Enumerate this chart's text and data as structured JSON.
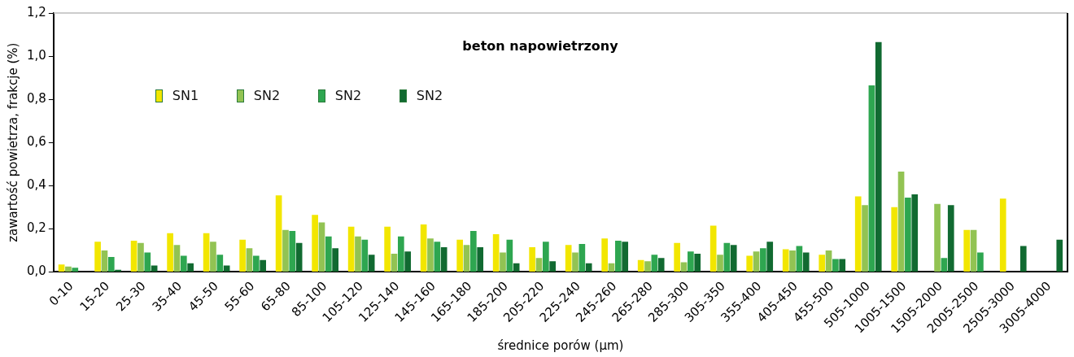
{
  "chart_data": {
    "type": "bar",
    "title": "beton napowietrzony",
    "xlabel": "średnice porów (µm)",
    "ylabel": "zawartość powietrza, frakcje (%)",
    "categories": [
      "0-10",
      "15-20",
      "25-30",
      "35-40",
      "45-50",
      "55-60",
      "65-80",
      "85-100",
      "105-120",
      "125-140",
      "145-160",
      "165-180",
      "185-200",
      "205-220",
      "225-240",
      "245-260",
      "265-280",
      "285-300",
      "305-350",
      "355-400",
      "405-450",
      "455-500",
      "505-1000",
      "1005-1500",
      "1505-2000",
      "2005-2500",
      "2505-3000",
      "3005-4000"
    ],
    "series": [
      {
        "name": "SN1",
        "color": "#f2e600",
        "values": [
          0.035,
          0.14,
          0.145,
          0.18,
          0.18,
          0.15,
          0.355,
          0.265,
          0.21,
          0.21,
          0.22,
          0.15,
          0.175,
          0.115,
          0.125,
          0.155,
          0.055,
          0.135,
          0.215,
          0.075,
          0.105,
          0.08,
          0.35,
          0.3,
          null,
          0.195,
          0.34,
          null
        ]
      },
      {
        "name": "SN2",
        "color": "#92c353",
        "values": [
          0.025,
          0.1,
          0.135,
          0.125,
          0.14,
          0.11,
          0.195,
          0.23,
          0.165,
          0.085,
          0.155,
          0.125,
          0.09,
          0.065,
          0.09,
          0.04,
          0.05,
          0.045,
          0.08,
          0.095,
          0.1,
          0.1,
          0.31,
          0.465,
          0.315,
          0.195,
          null,
          null
        ]
      },
      {
        "name": "SN2",
        "color": "#2ea650",
        "values": [
          0.02,
          0.07,
          0.09,
          0.075,
          0.08,
          0.075,
          0.19,
          0.165,
          0.15,
          0.165,
          0.14,
          0.19,
          0.15,
          0.14,
          0.13,
          0.145,
          0.08,
          0.095,
          0.135,
          0.11,
          0.12,
          0.06,
          0.865,
          0.345,
          0.065,
          0.09,
          null,
          null
        ]
      },
      {
        "name": "SN2",
        "color": "#116a31",
        "values": [
          null,
          0.01,
          0.03,
          0.04,
          0.03,
          0.055,
          0.135,
          0.11,
          0.08,
          0.095,
          0.115,
          0.115,
          0.04,
          0.05,
          0.04,
          0.14,
          0.065,
          0.085,
          0.125,
          0.14,
          0.09,
          0.06,
          1.065,
          0.36,
          0.31,
          null,
          0.12,
          0.15
        ]
      }
    ],
    "ylim": [
      0,
      1.2
    ],
    "yticks": [
      {
        "value": 0,
        "label": "0,0"
      },
      {
        "value": 0.2,
        "label": "0,2"
      },
      {
        "value": 0.4,
        "label": "0,4"
      },
      {
        "value": 0.6,
        "label": "0,6"
      },
      {
        "value": 0.8,
        "label": "0,8"
      },
      {
        "value": 1,
        "label": "1,0"
      },
      {
        "value": 1.2,
        "label": "1,2"
      }
    ],
    "grid": false,
    "legend": "top left"
  }
}
